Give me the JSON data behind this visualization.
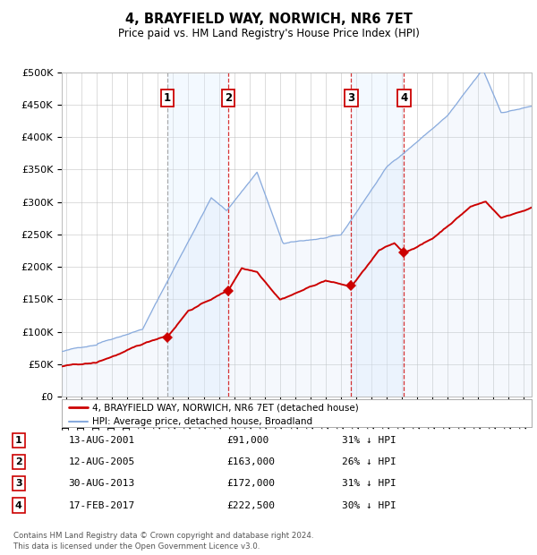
{
  "title": "4, BRAYFIELD WAY, NORWICH, NR6 7ET",
  "subtitle": "Price paid vs. HM Land Registry's House Price Index (HPI)",
  "ylim": [
    0,
    500000
  ],
  "yticks": [
    0,
    50000,
    100000,
    150000,
    200000,
    250000,
    300000,
    350000,
    400000,
    450000,
    500000
  ],
  "ytick_labels": [
    "£0",
    "£50K",
    "£100K",
    "£150K",
    "£200K",
    "£250K",
    "£300K",
    "£350K",
    "£400K",
    "£450K",
    "£500K"
  ],
  "xlim_start": 1994.7,
  "xlim_end": 2025.5,
  "xtick_years": [
    1995,
    1996,
    1997,
    1998,
    1999,
    2000,
    2001,
    2002,
    2003,
    2004,
    2005,
    2006,
    2007,
    2008,
    2009,
    2010,
    2011,
    2012,
    2013,
    2014,
    2015,
    2016,
    2017,
    2018,
    2019,
    2020,
    2021,
    2022,
    2023,
    2024,
    2025
  ],
  "sale_color": "#cc0000",
  "hpi_color": "#88aadd",
  "hpi_fill_color": "#ccddf5",
  "sale_label": "4, BRAYFIELD WAY, NORWICH, NR6 7ET (detached house)",
  "hpi_label": "HPI: Average price, detached house, Broadland",
  "transactions": [
    {
      "num": 1,
      "date_str": "13-AUG-2001",
      "date_x": 2001.617,
      "price": 91000
    },
    {
      "num": 2,
      "date_str": "12-AUG-2005",
      "date_x": 2005.617,
      "price": 163000
    },
    {
      "num": 3,
      "date_str": "30-AUG-2013",
      "date_x": 2013.664,
      "price": 172000
    },
    {
      "num": 4,
      "date_str": "17-FEB-2017",
      "date_x": 2017.125,
      "price": 222500
    }
  ],
  "table_rows": [
    {
      "num": 1,
      "date": "13-AUG-2001",
      "price": "£91,000",
      "pct": "31% ↓ HPI"
    },
    {
      "num": 2,
      "date": "12-AUG-2005",
      "price": "£163,000",
      "pct": "26% ↓ HPI"
    },
    {
      "num": 3,
      "date": "30-AUG-2013",
      "price": "£172,000",
      "pct": "31% ↓ HPI"
    },
    {
      "num": 4,
      "date": "17-FEB-2017",
      "price": "£222,500",
      "pct": "30% ↓ HPI"
    }
  ],
  "footnote": "Contains HM Land Registry data © Crown copyright and database right 2024.\nThis data is licensed under the Open Government Licence v3.0.",
  "background_color": "#ffffff",
  "grid_color": "#bbbbbb",
  "shade_color": "#ddeeff"
}
